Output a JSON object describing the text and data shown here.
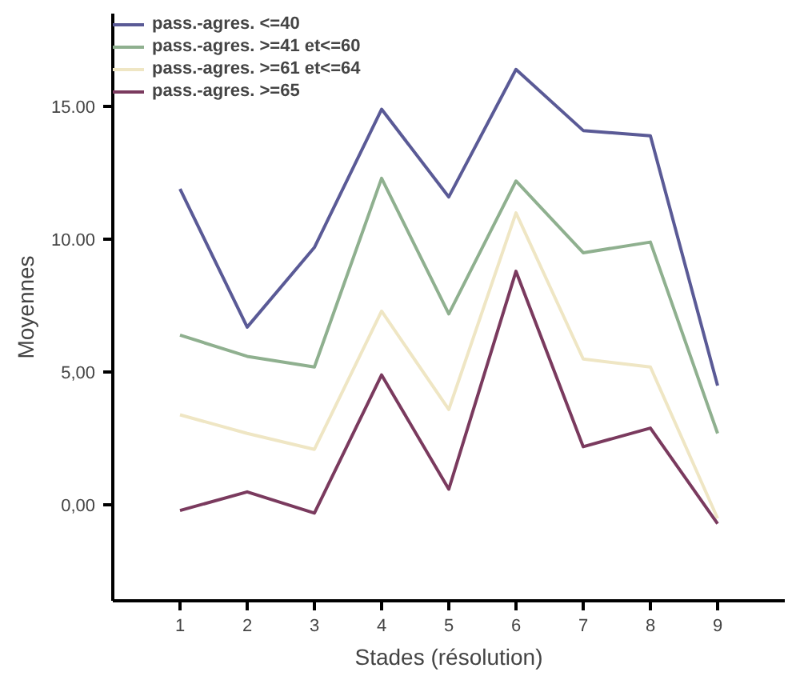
{
  "chart_data": {
    "type": "line",
    "xlabel": "Stades (résolution)",
    "ylabel": "Moyennes",
    "x": [
      1,
      2,
      3,
      4,
      5,
      6,
      7,
      8,
      9
    ],
    "xlim": [
      0,
      10
    ],
    "xticks": [
      1,
      2,
      3,
      4,
      5,
      6,
      7,
      8,
      9
    ],
    "ylim": [
      -3.6,
      18.5
    ],
    "yticks": [
      {
        "value": 0,
        "label": "0,00"
      },
      {
        "value": 5,
        "label": "5,00"
      },
      {
        "value": 10,
        "label": "10.00"
      },
      {
        "value": 15,
        "label": "15.00"
      }
    ],
    "grid": false,
    "legend": "top left",
    "marker": "none",
    "line_style": "solid",
    "series": [
      {
        "name": "pass.-agres. <=40",
        "color": "#5a5a96",
        "values": [
          11.9,
          6.7,
          9.7,
          14.9,
          11.6,
          16.4,
          14.1,
          13.9,
          4.5
        ]
      },
      {
        "name": "pass.-agres. >=41 et<=60",
        "color": "#8fb08f",
        "values": [
          6.4,
          5.6,
          5.2,
          12.3,
          7.2,
          12.2,
          9.5,
          9.9,
          2.7
        ]
      },
      {
        "name": "pass.-agres. >=61 et<=64",
        "color": "#efe6c4",
        "values": [
          3.4,
          2.7,
          2.1,
          7.3,
          3.6,
          11.0,
          5.5,
          5.2,
          -0.5
        ]
      },
      {
        "name": "pass.-agres. >=65",
        "color": "#7a3a5e",
        "values": [
          -0.2,
          0.5,
          -0.3,
          4.9,
          0.6,
          8.8,
          2.2,
          2.9,
          -0.7
        ]
      }
    ]
  }
}
